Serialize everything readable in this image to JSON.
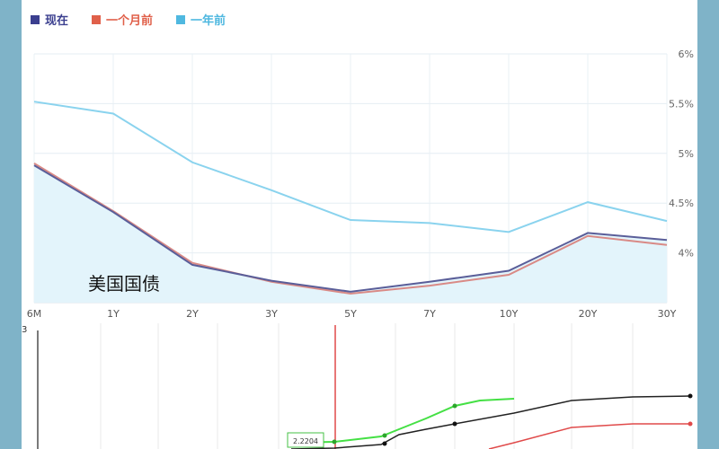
{
  "chart_data": {
    "type": "line",
    "legend": [
      {
        "name": "现在",
        "color": "#3b3f8f"
      },
      {
        "name": "一个月前",
        "color": "#e0604a"
      },
      {
        "name": "一年前",
        "color": "#4fb8e0"
      }
    ],
    "categories": [
      "6M",
      "1Y",
      "2Y",
      "3Y",
      "5Y",
      "7Y",
      "10Y",
      "20Y",
      "30Y"
    ],
    "y_ticks": [
      "6%",
      "5.5%",
      "5%",
      "4.5%",
      "4%"
    ],
    "ylim": [
      3.5,
      6.0
    ],
    "y_axis_position": "right",
    "grid": true,
    "series": [
      {
        "name": "现在",
        "color": "#5a5e99",
        "values": [
          4.88,
          4.41,
          3.88,
          3.72,
          3.61,
          3.71,
          3.82,
          4.2,
          4.13
        ],
        "area": true
      },
      {
        "name": "一个月前",
        "color": "#d98a86",
        "values": [
          4.9,
          4.42,
          3.9,
          3.71,
          3.59,
          3.67,
          3.78,
          4.17,
          4.08
        ]
      },
      {
        "name": "一年前",
        "color": "#8ad3ee",
        "values": [
          5.52,
          5.4,
          4.91,
          4.63,
          4.33,
          4.3,
          4.21,
          4.51,
          4.32
        ]
      }
    ],
    "caption": "美国国债"
  },
  "bottom": {
    "top_label": "3",
    "box_value": "2.2204"
  }
}
